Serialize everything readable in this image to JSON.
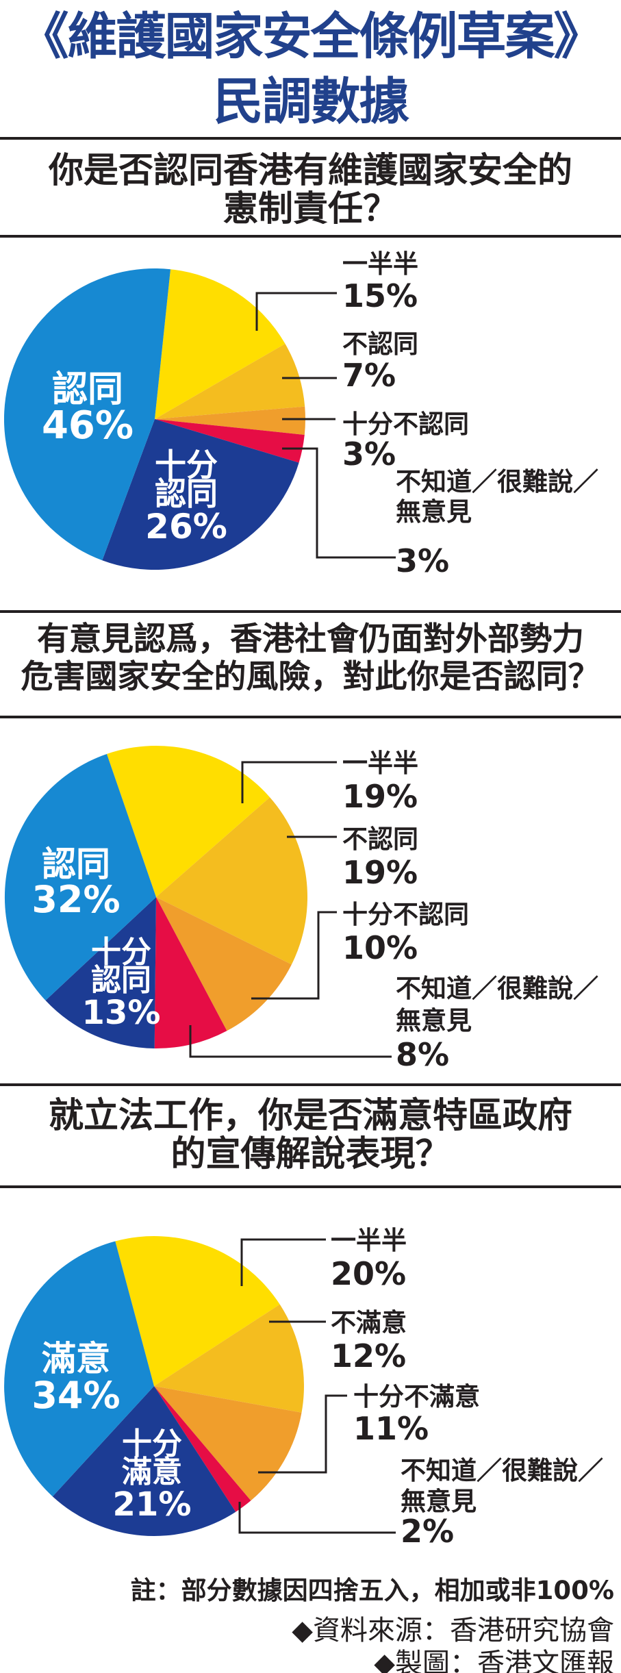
{
  "title": {
    "line1": "《維護國家安全條例草案》",
    "line2": "民調數據"
  },
  "colors": {
    "title_navy": "#21418C",
    "ink": "#231F20",
    "agree": "#1789D2",
    "strong_agree": "#1C3C94",
    "neutral": "#FFDE00",
    "disagree": "#F4BD1F",
    "strong_disagree": "#F09E2C",
    "dont_know": "#E60D45",
    "inside_label": "#FFFFFF"
  },
  "footer": {
    "note": "註：部分數據因四捨五入，相加或非100%",
    "source": "◆資料來源：香港研究協會",
    "credit": "◆製圖：香港文匯報"
  },
  "chart_data": [
    {
      "type": "pie",
      "question_lines": [
        "你是否認同香港有維護國家安全的",
        "憲制責任？"
      ],
      "start_angle": 6,
      "legend_position": "right-callouts",
      "slices": [
        {
          "label": "一半半",
          "label_lines": [
            "一半半"
          ],
          "value": 15,
          "pct_label": "15%",
          "color": "neutral",
          "inside": false
        },
        {
          "label": "不認同",
          "label_lines": [
            "不認同"
          ],
          "value": 7,
          "pct_label": "7%",
          "color": "disagree",
          "inside": false
        },
        {
          "label": "十分不認同",
          "label_lines": [
            "十分不認同"
          ],
          "value": 3,
          "pct_label": "3%",
          "color": "strong_disagree",
          "inside": false
        },
        {
          "label": "不知道／很難說／無意見",
          "label_lines": [
            "不知道／很難說／",
            "無意見"
          ],
          "value": 3,
          "pct_label": "3%",
          "color": "dont_know",
          "inside": false
        },
        {
          "label": "十分認同",
          "label_lines": [
            "十分",
            "認同"
          ],
          "value": 26,
          "pct_label": "26%",
          "color": "strong_agree",
          "inside": true
        },
        {
          "label": "認同",
          "label_lines": [
            "認同"
          ],
          "value": 46,
          "pct_label": "46%",
          "color": "agree",
          "inside": true
        }
      ]
    },
    {
      "type": "pie",
      "question_lines": [
        "有意見認爲，香港社會仍面對外部勢力",
        "危害國家安全的風險，對此你是否認同？"
      ],
      "start_angle": -19,
      "legend_position": "right-callouts",
      "slices": [
        {
          "label": "一半半",
          "label_lines": [
            "一半半"
          ],
          "value": 19,
          "pct_label": "19%",
          "color": "neutral",
          "inside": false
        },
        {
          "label": "不認同",
          "label_lines": [
            "不認同"
          ],
          "value": 19,
          "pct_label": "19%",
          "color": "disagree",
          "inside": false
        },
        {
          "label": "十分不認同",
          "label_lines": [
            "十分不認同"
          ],
          "value": 10,
          "pct_label": "10%",
          "color": "strong_disagree",
          "inside": false
        },
        {
          "label": "不知道／很難說／無意見",
          "label_lines": [
            "不知道／很難說／",
            "無意見"
          ],
          "value": 8,
          "pct_label": "8%",
          "color": "dont_know",
          "inside": false
        },
        {
          "label": "十分認同",
          "label_lines": [
            "十分",
            "認同"
          ],
          "value": 13,
          "pct_label": "13%",
          "color": "strong_agree",
          "inside": true
        },
        {
          "label": "認同",
          "label_lines": [
            "認同"
          ],
          "value": 32,
          "pct_label": "32%",
          "color": "agree",
          "inside": true
        }
      ]
    },
    {
      "type": "pie",
      "question_lines": [
        "就立法工作，你是否滿意特區政府",
        "的宣傳解說表現？"
      ],
      "start_angle": -15,
      "legend_position": "right-callouts",
      "slices": [
        {
          "label": "一半半",
          "label_lines": [
            "一半半"
          ],
          "value": 20,
          "pct_label": "20%",
          "color": "neutral",
          "inside": false
        },
        {
          "label": "不滿意",
          "label_lines": [
            "不滿意"
          ],
          "value": 12,
          "pct_label": "12%",
          "color": "disagree",
          "inside": false
        },
        {
          "label": "十分不滿意",
          "label_lines": [
            "十分不滿意"
          ],
          "value": 11,
          "pct_label": "11%",
          "color": "strong_disagree",
          "inside": false
        },
        {
          "label": "不知道／很難說／無意見",
          "label_lines": [
            "不知道／很難說／",
            "無意見"
          ],
          "value": 2,
          "pct_label": "2%",
          "color": "dont_know",
          "inside": false
        },
        {
          "label": "十分滿意",
          "label_lines": [
            "十分",
            "滿意"
          ],
          "value": 21,
          "pct_label": "21%",
          "color": "strong_agree",
          "inside": true
        },
        {
          "label": "滿意",
          "label_lines": [
            "滿意"
          ],
          "value": 34,
          "pct_label": "34%",
          "color": "agree",
          "inside": true
        }
      ]
    }
  ]
}
